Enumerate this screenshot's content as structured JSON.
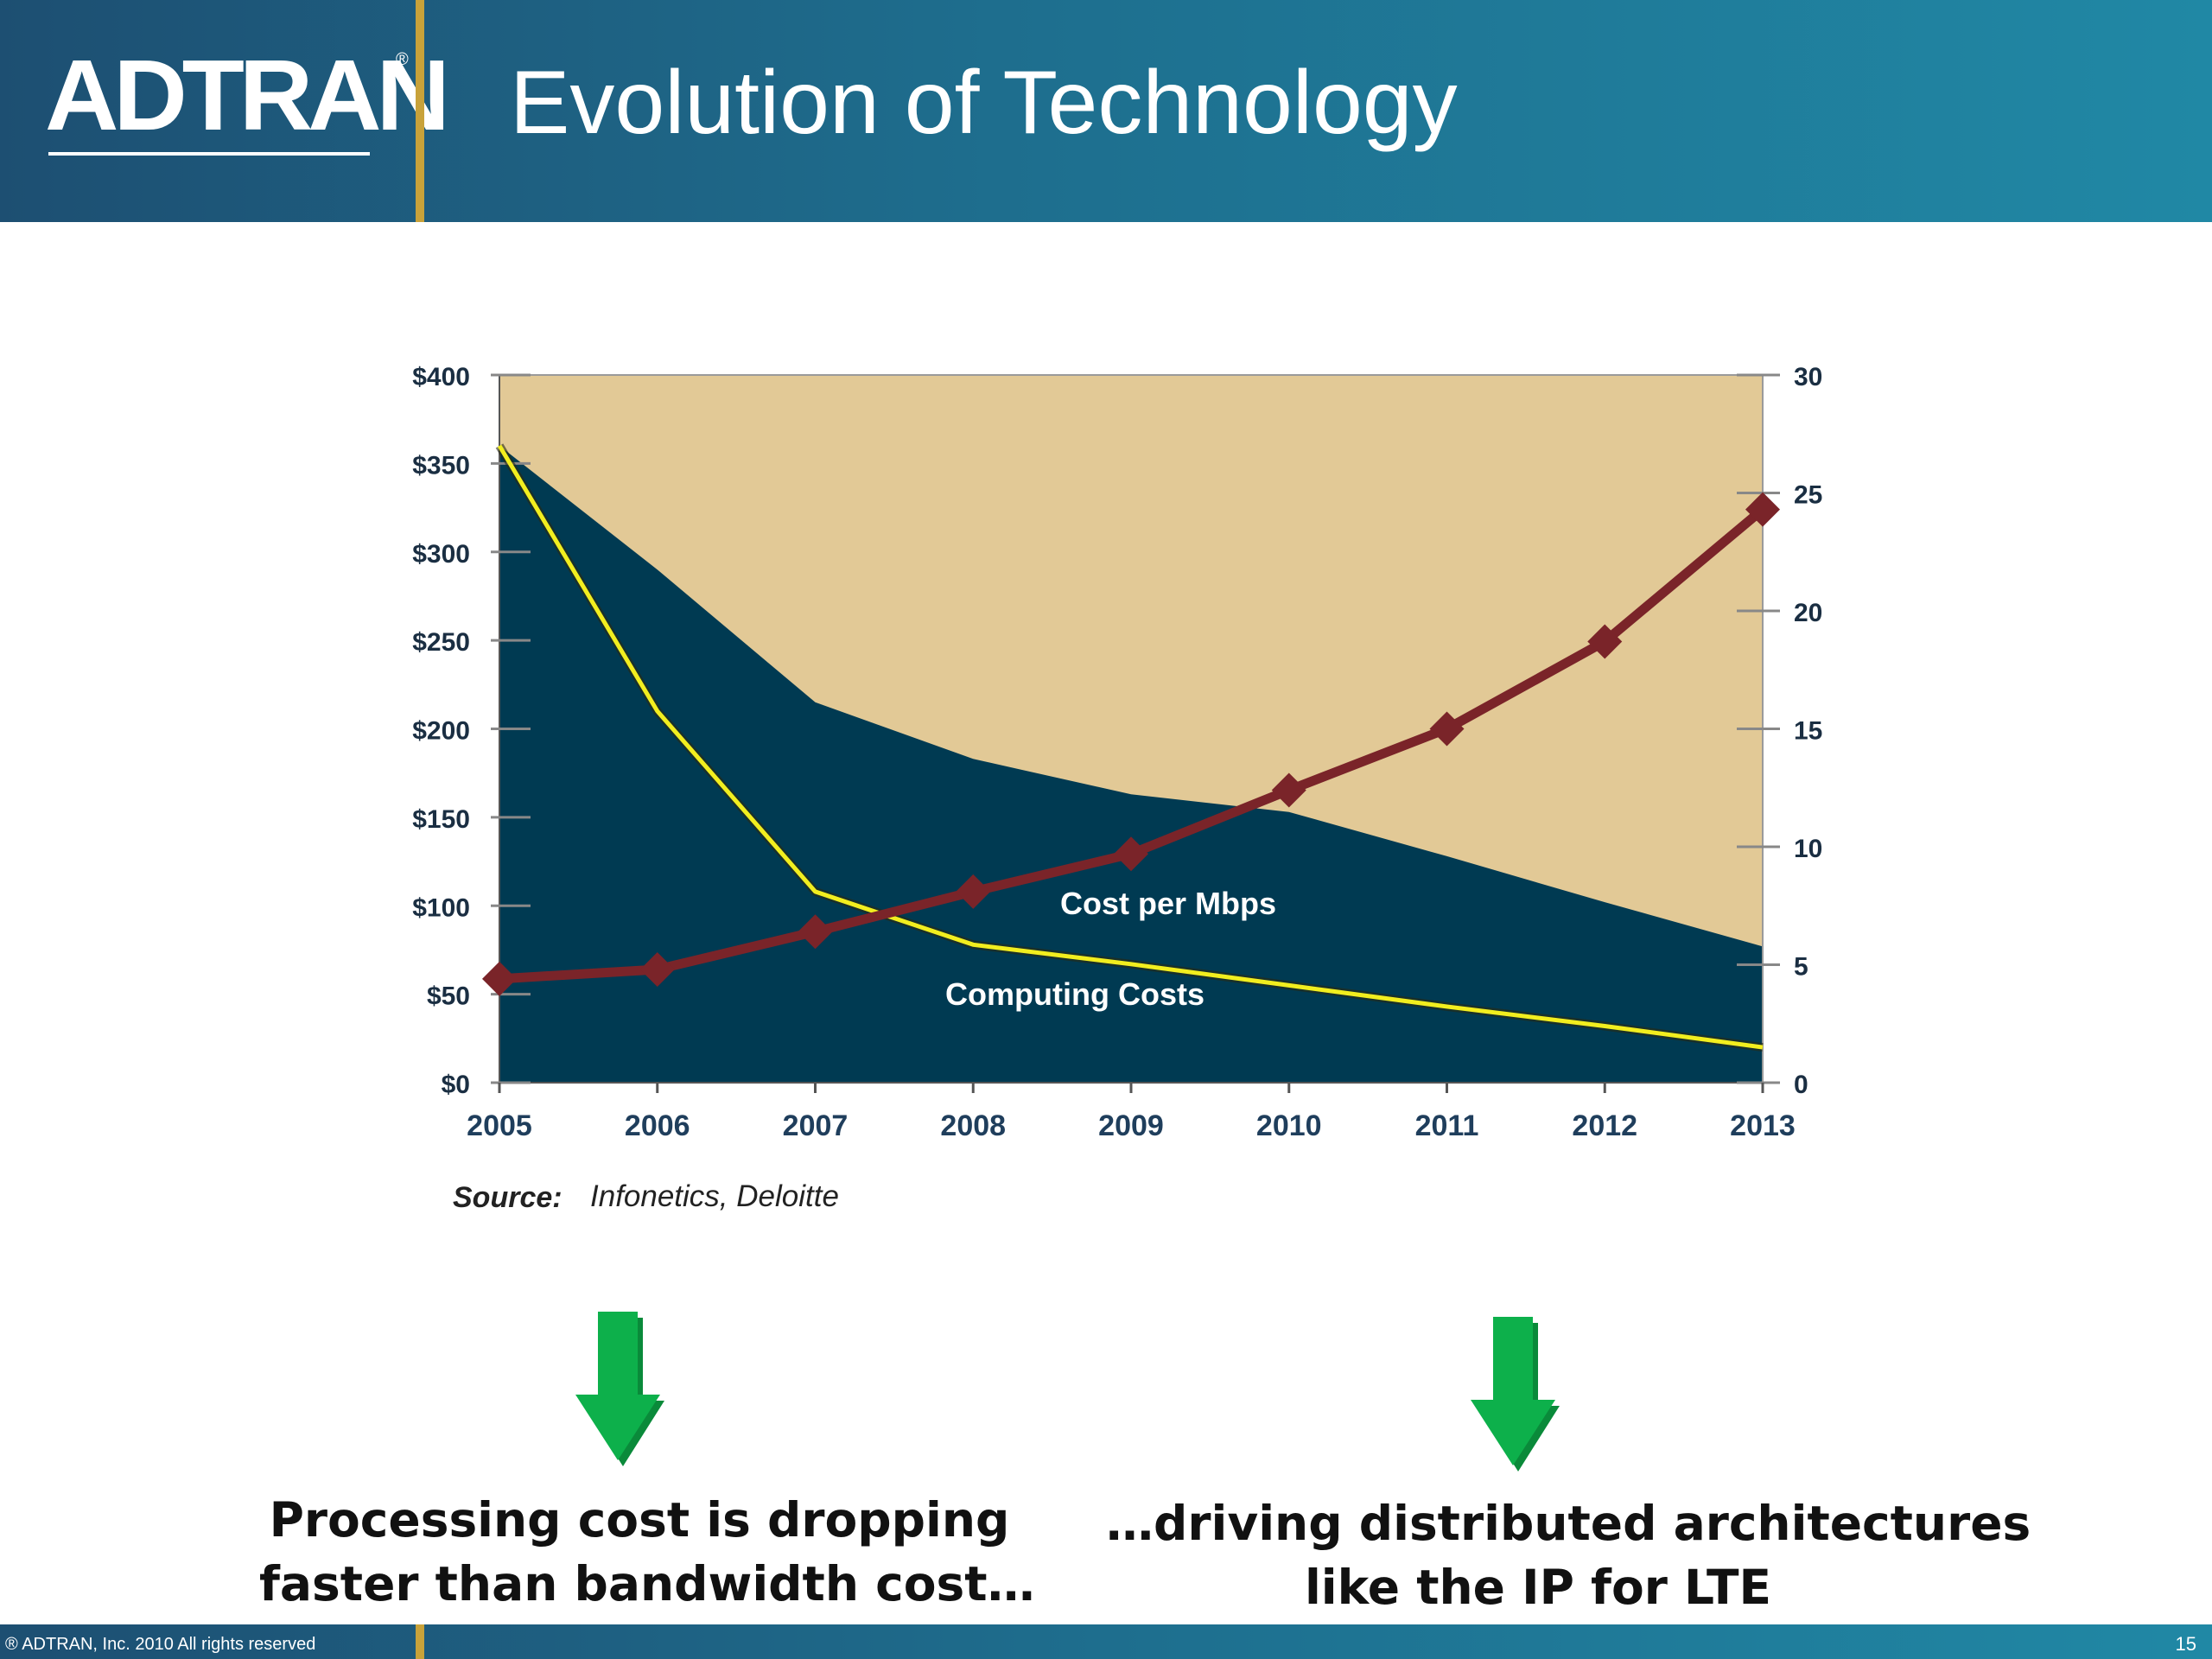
{
  "header": {
    "logo_text": "ADTRAN",
    "logo_reg": "®",
    "title": "Evolution of Technology"
  },
  "colors": {
    "header_blue": "#1e6e8e",
    "accent_gold": "#c8a23a",
    "area_fill": "#003a52",
    "plot_background": "#e2c996",
    "computing_line": "#f2ee1f",
    "diamond_series": "#7a2429",
    "arrow_green": "#0db04b"
  },
  "chart_data": {
    "type": "area",
    "categories": [
      "2005",
      "2006",
      "2007",
      "2008",
      "2009",
      "2010",
      "2011",
      "2012",
      "2013"
    ],
    "y_left": {
      "ylim": [
        0,
        400
      ],
      "ticks": [
        0,
        50,
        100,
        150,
        200,
        250,
        300,
        350,
        400
      ],
      "tick_labels": [
        "$0",
        "$50",
        "$100",
        "$150",
        "$200",
        "$250",
        "$300",
        "$350",
        "$400"
      ]
    },
    "y_right": {
      "ylim": [
        0,
        30
      ],
      "ticks": [
        0,
        5,
        10,
        15,
        20,
        25,
        30
      ],
      "tick_labels": [
        "0",
        "5",
        "10",
        "15",
        "20",
        "25",
        "30"
      ]
    },
    "series": [
      {
        "name": "Cost per Mbps",
        "kind": "area",
        "axis": "left",
        "values": [
          360,
          290,
          215,
          183,
          163,
          153,
          128,
          102,
          77
        ]
      },
      {
        "name": "Computing Costs",
        "kind": "line",
        "axis": "left",
        "values": [
          360,
          210,
          108,
          78,
          67,
          55,
          43,
          32,
          20
        ]
      },
      {
        "name": "",
        "kind": "line-markers",
        "axis": "right",
        "values": [
          4.4,
          4.8,
          6.4,
          8.1,
          9.7,
          12.4,
          15,
          18.7,
          24.3
        ]
      }
    ],
    "annotations": [
      "Cost per Mbps",
      "Computing Costs"
    ],
    "grid": false,
    "legend": "none"
  },
  "source": {
    "label": "Source:",
    "text": "Infonetics, Deloitte"
  },
  "captions": {
    "left_line1": "Processing cost is dropping",
    "left_line2": "faster than bandwidth cost…",
    "right_line1": "…driving distributed architectures",
    "right_line2": "like the IP for LTE"
  },
  "footer": {
    "copyright": "® ADTRAN, Inc. 2010 All rights reserved",
    "page_number": "15"
  }
}
